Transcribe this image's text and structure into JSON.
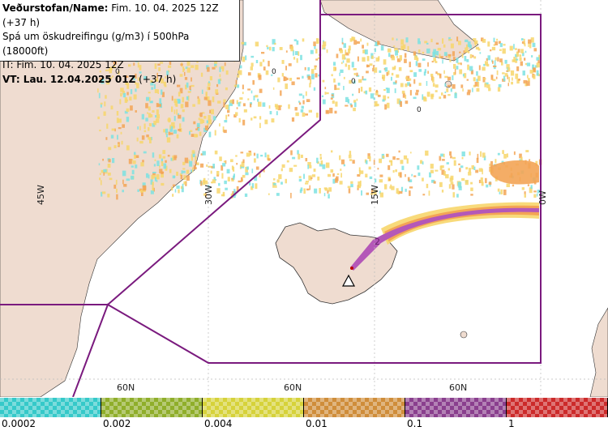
{
  "info": {
    "line1_label": "Veðurstofan/Name:",
    "line1_value": " Fim. 10. 04. 2025 12Z (+37 h)",
    "line2": "Spá um öskudreifingu (g/m3) í 500hPa (18000ft)",
    "line3": "IT: Fim. 10. 04. 2025 12Z",
    "line4_label": "VT:",
    "line4_value": " Lau. 12.04.2025 01Z",
    "line4_suffix": " (+37 h)"
  },
  "grid": {
    "lon_labels": [
      "45W",
      "30W",
      "15W",
      "0W"
    ],
    "lat_labels": [
      "60N",
      "60N",
      "60N"
    ]
  },
  "contours": [
    "0",
    "0",
    "0",
    "0",
    "2"
  ],
  "legend": {
    "ticks": [
      "0.0002",
      "0.002",
      "0.004",
      "0.01",
      "0.1",
      "1"
    ],
    "colors": [
      "#35c9c9",
      "#8fae2a",
      "#d6d23a",
      "#cf8d3a",
      "#8a3f8e",
      "#cc2a2a"
    ]
  },
  "palette": {
    "land": "#efdcd0",
    "ash_low": "#f7d66b",
    "ash_mid": "#f3a455",
    "ash_high": "#b458b8",
    "boundary": "#7a1a7e",
    "cyan": "#7de2e2"
  },
  "volcano_icon": "volcano-triangle-icon"
}
